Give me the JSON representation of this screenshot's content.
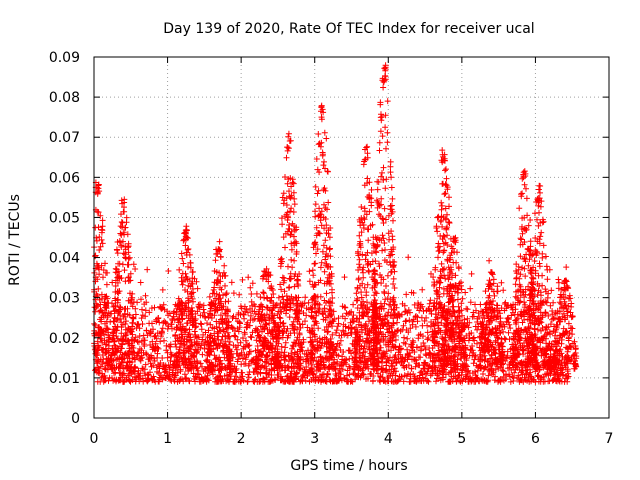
{
  "chart_data": {
    "type": "scatter",
    "title": "Day 139 of 2020, Rate Of TEC Index for receiver ucal",
    "xlabel": "GPS time / hours",
    "ylabel": "ROTI / TECUs",
    "xlim": [
      0,
      7
    ],
    "ylim": [
      0,
      0.09
    ],
    "xticks": [
      "0",
      "1",
      "2",
      "3",
      "4",
      "5",
      "6",
      "7"
    ],
    "yticks": [
      "0",
      "0.01",
      "0.02",
      "0.03",
      "0.04",
      "0.05",
      "0.06",
      "0.07",
      "0.08",
      "0.09"
    ],
    "grid": true,
    "marker": "+",
    "series": [
      {
        "name": "ROTI",
        "color": "#ff0000",
        "x_range": [
          0,
          6.45
        ],
        "baseline_band": [
          0.005,
          0.025
        ],
        "bursts": [
          {
            "x": 0.05,
            "max": 0.06
          },
          {
            "x": 0.4,
            "max": 0.055
          },
          {
            "x": 1.25,
            "max": 0.048
          },
          {
            "x": 1.7,
            "max": 0.044
          },
          {
            "x": 2.35,
            "max": 0.038
          },
          {
            "x": 2.65,
            "max": 0.071
          },
          {
            "x": 3.1,
            "max": 0.078
          },
          {
            "x": 3.7,
            "max": 0.068
          },
          {
            "x": 3.95,
            "max": 0.088
          },
          {
            "x": 4.75,
            "max": 0.068
          },
          {
            "x": 4.9,
            "max": 0.045
          },
          {
            "x": 5.4,
            "max": 0.037
          },
          {
            "x": 5.85,
            "max": 0.062
          },
          {
            "x": 6.05,
            "max": 0.058
          },
          {
            "x": 6.4,
            "max": 0.035
          }
        ]
      }
    ]
  }
}
